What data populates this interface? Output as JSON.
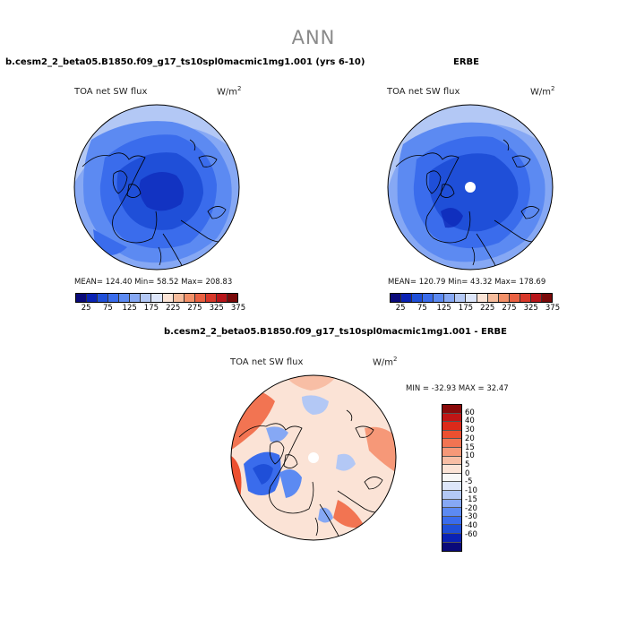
{
  "page": {
    "title": "ANN"
  },
  "panels": {
    "model": {
      "title": "b.cesm2_2_beta05.B1850.f09_g17_ts10spl0macmic1mg1.001 (yrs 6-10)",
      "variable": "TOA net SW flux",
      "units_base": "W/m",
      "units_exp": "2",
      "stats": "MEAN= 124.40   Min=  58.52   Max= 208.83"
    },
    "obs": {
      "title": "ERBE",
      "variable": "TOA net SW flux",
      "units_base": "W/m",
      "units_exp": "2",
      "stats": "MEAN= 120.79   Min=  43.32   Max= 178.69"
    },
    "diff": {
      "title": "b.cesm2_2_beta05.B1850.f09_g17_ts10spl0macmic1mg1.001 - ERBE",
      "variable": "TOA net SW flux",
      "units_base": "W/m",
      "units_exp": "2",
      "stats": "MIN = -32.93  MAX =  32.47"
    }
  },
  "colorbars": {
    "abs": {
      "colors": [
        "#0a0a7a",
        "#0a22b4",
        "#1f4fd8",
        "#3a6cec",
        "#5c8af2",
        "#86a8f4",
        "#b3c8f5",
        "#dde6fa",
        "#fbe4d6",
        "#f6bc9c",
        "#f39068",
        "#ea6142",
        "#d8382a",
        "#b8151a",
        "#7a0a0a"
      ],
      "ticks": [
        "25",
        "75",
        "125",
        "175",
        "225",
        "275",
        "325",
        "375"
      ]
    },
    "diff": {
      "colors": [
        "#8a0a0a",
        "#c01515",
        "#dc2a1a",
        "#ec5030",
        "#f27452",
        "#f69878",
        "#f8bea5",
        "#fbe3d6",
        "#f7f7f7",
        "#dde6fa",
        "#b3c8f5",
        "#86a8f4",
        "#5c8af2",
        "#3a6cec",
        "#1f4fd8",
        "#0a22b4",
        "#0a0a7a"
      ],
      "ticks": [
        "60",
        "40",
        "30",
        "20",
        "15",
        "10",
        "5",
        "0",
        "-5",
        "-10",
        "-15",
        "-20",
        "-30",
        "-40",
        "-60"
      ]
    }
  }
}
